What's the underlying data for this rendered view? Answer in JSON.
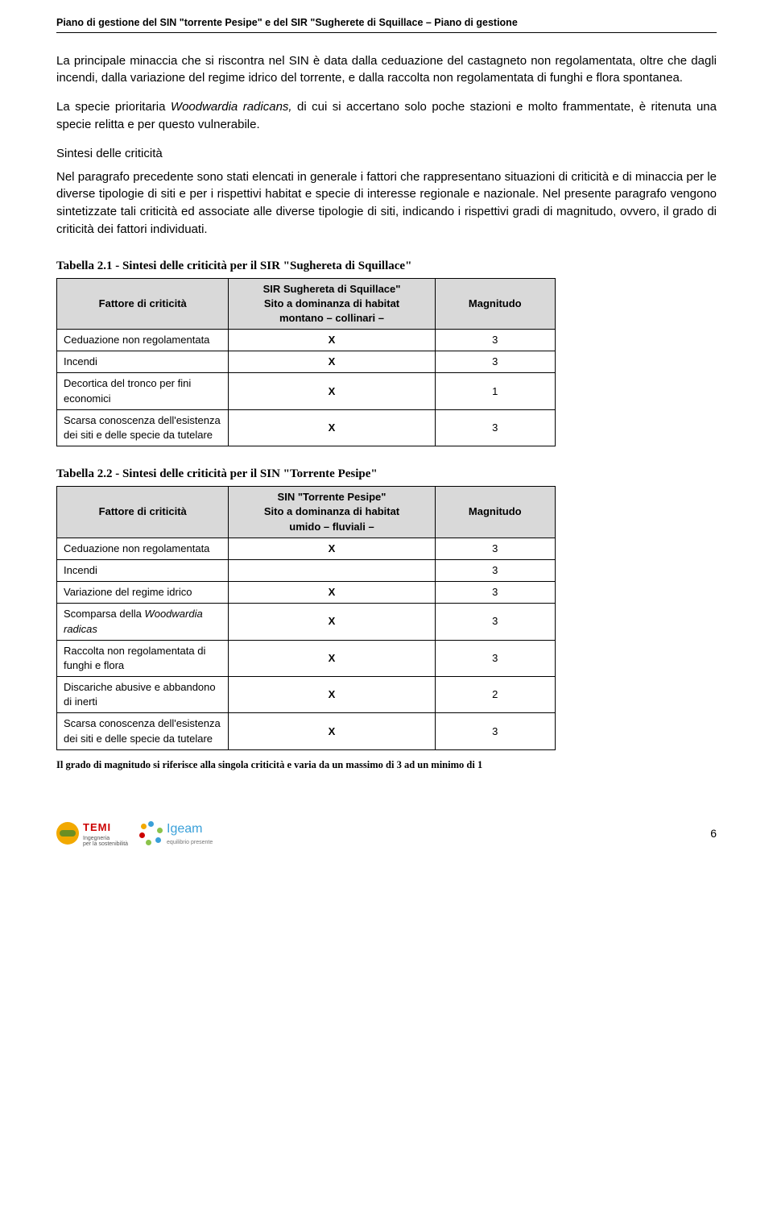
{
  "header": {
    "title": "Piano di gestione del SIN \"torrente Pesipe\" e del SIR \"Sugherete di Squillace – Piano di gestione"
  },
  "body": {
    "para1": "La principale minaccia che si riscontra nel SIN è data dalla ceduazione del castagneto non regolamentata, oltre che dagli incendi, dalla variazione del regime idrico del torrente, e dalla raccolta non regolamentata di funghi e flora spontanea.",
    "para2a": "La specie prioritaria ",
    "para2b": "Woodwardia radicans,",
    "para2c": " di cui si accertano solo poche stazioni e molto frammentate, è ritenuta una specie relitta e per questo vulnerabile.",
    "subheading": "Sintesi delle criticità",
    "para3": "Nel paragrafo precedente sono stati elencati in generale i fattori che rappresentano situazioni di criticità e di minaccia per le diverse tipologie di siti e per i rispettivi habitat e specie di interesse regionale e nazionale. Nel presente paragrafo vengono sintetizzate tali criticità ed associate alle diverse tipologie di siti, indicando i rispettivi gradi di magnitudo, ovvero, il grado di criticità dei fattori individuati."
  },
  "table1": {
    "caption": "Tabella 2.1 - Sintesi delle criticità per il SIR \"Sughereta di Squillace\"",
    "headers": {
      "factor": "Fattore di criticità",
      "site": "SIR Sughereta di Squillace\"\nSito a dominanza di habitat\nmontano – collinari –",
      "magnitude": "Magnitudo"
    },
    "rows": [
      {
        "factor": "Ceduazione non regolamentata",
        "mark": "X",
        "mag": "3"
      },
      {
        "factor": "Incendi",
        "mark": "X",
        "mag": "3"
      },
      {
        "factor": "Decortica del tronco per fini economici",
        "mark": "X",
        "mag": "1"
      },
      {
        "factor": "Scarsa conoscenza dell'esistenza dei siti e delle specie da tutelare",
        "mark": "X",
        "mag": "3"
      }
    ]
  },
  "table2": {
    "caption": "Tabella 2.2 - Sintesi delle criticità per il SIN \"Torrente Pesipe\"",
    "headers": {
      "factor": "Fattore di criticità",
      "site": "SIN \"Torrente Pesipe\"\nSito a dominanza di habitat\numido – fluviali –",
      "magnitude": "Magnitudo"
    },
    "rows": [
      {
        "factor": "Ceduazione non regolamentata",
        "mark": "X",
        "mag": "3"
      },
      {
        "factor": "Incendi",
        "mark": "",
        "mag": "3"
      },
      {
        "factor": "Variazione del regime idrico",
        "mark": "X",
        "mag": "3"
      },
      {
        "factor_a": "Scomparsa della ",
        "factor_b": "Woodwardia radicas",
        "mark": "X",
        "mag": "3"
      },
      {
        "factor": "Raccolta non regolamentata di funghi e flora",
        "mark": "X",
        "mag": "3"
      },
      {
        "factor": "Discariche abusive e abbandono di inerti",
        "mark": "X",
        "mag": "2"
      },
      {
        "factor": "Scarsa conoscenza dell'esistenza dei siti e delle specie da tutelare",
        "mark": "X",
        "mag": "3"
      }
    ]
  },
  "footnote": "Il grado di magnitudo si riferisce alla singola criticità e varia da un massimo di 3 ad un minimo di 1",
  "footer": {
    "logo1": "TEMI",
    "logo1sub": "Ingegneria\nper la sostenibilità",
    "logo2": "Igeam",
    "logo2sub": "equilibrio presente",
    "page": "6"
  }
}
